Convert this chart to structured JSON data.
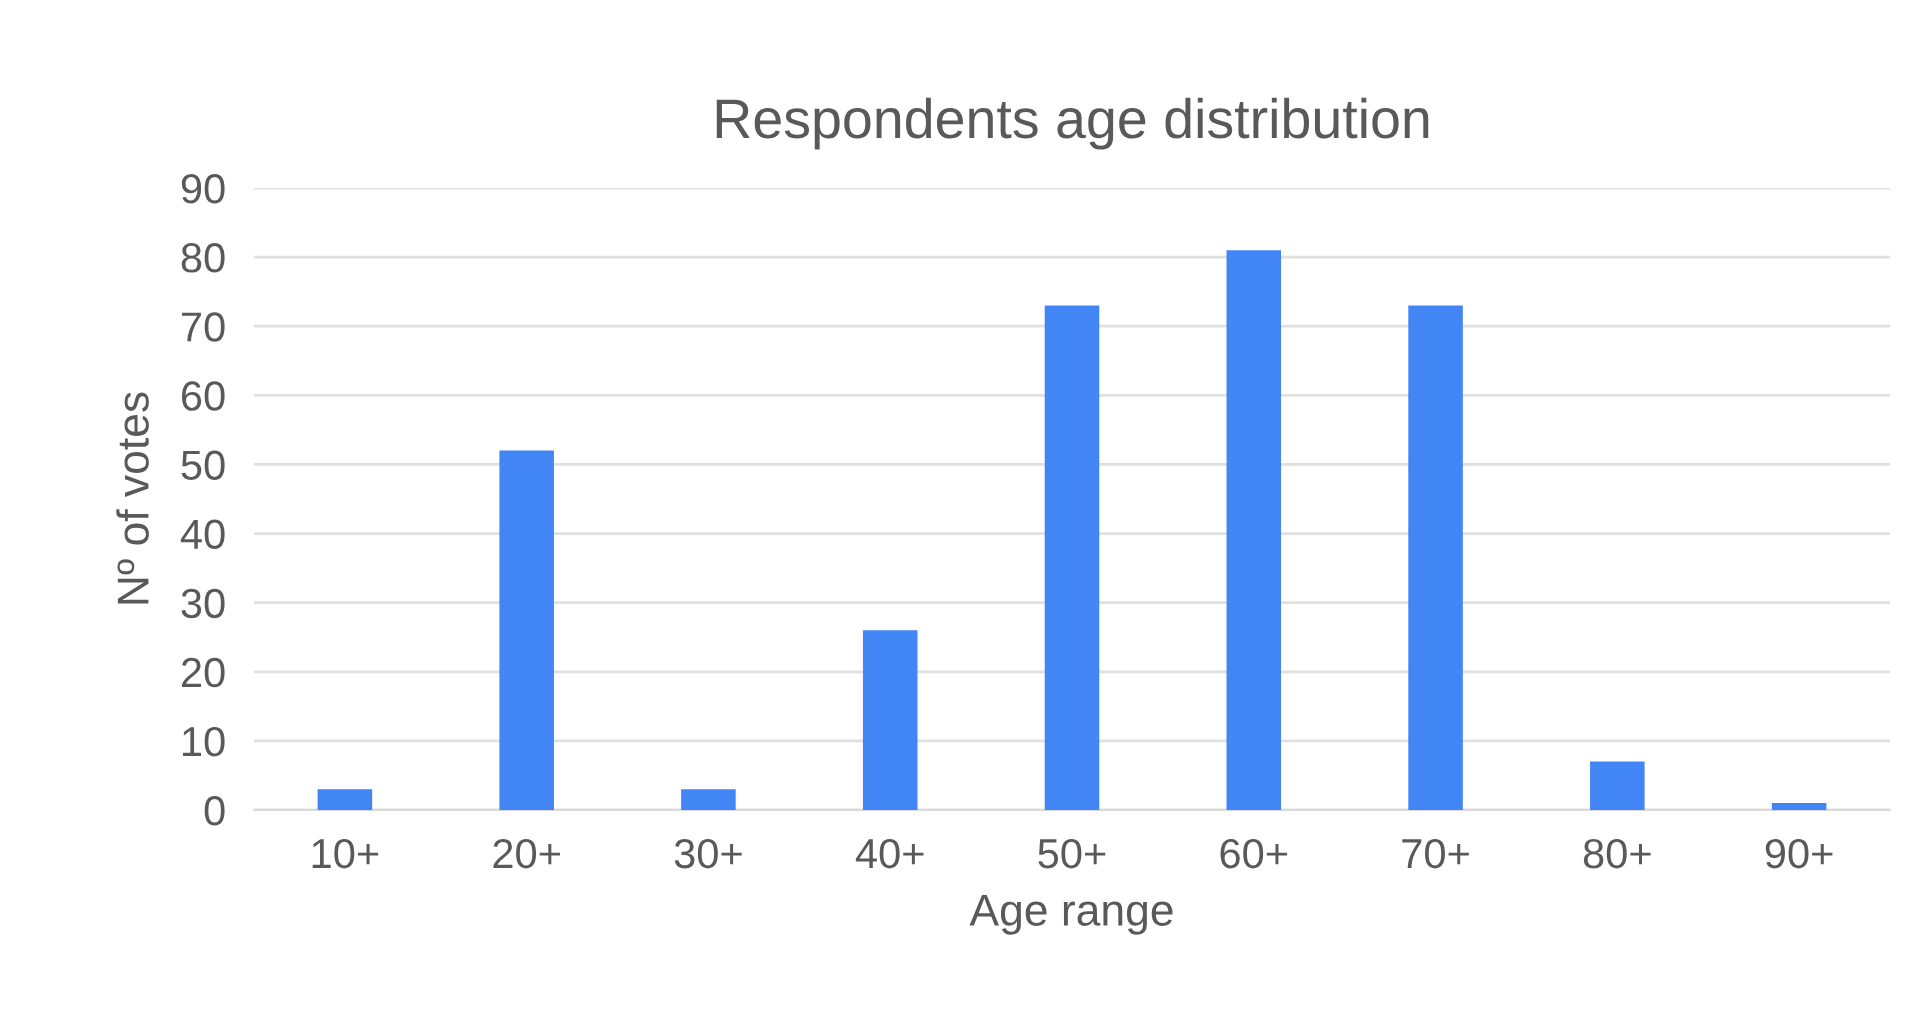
{
  "chart_data": {
    "type": "bar",
    "title": "Respondents age distribution",
    "xlabel": "Age range",
    "ylabel": "Nº of votes",
    "categories": [
      "10+",
      "20+",
      "30+",
      "40+",
      "50+",
      "60+",
      "70+",
      "80+",
      "90+"
    ],
    "values": [
      3,
      52,
      3,
      26,
      73,
      81,
      73,
      7,
      1
    ],
    "color": "#4285f4",
    "ylim": [
      0,
      90
    ],
    "yticks": [
      0,
      10,
      20,
      30,
      40,
      50,
      60,
      70,
      80,
      90
    ],
    "grid": "y",
    "legend": false
  }
}
